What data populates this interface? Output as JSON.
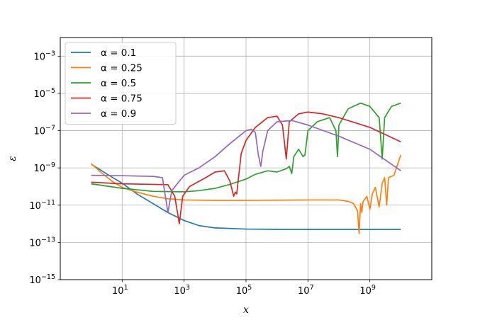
{
  "chart_data": {
    "type": "line",
    "title": "",
    "xlabel": "x",
    "ylabel": "ε",
    "xscale": "log",
    "yscale": "log",
    "xlim": [
      0.1,
      100000000000.0
    ],
    "ylim": [
      1e-15,
      0.01
    ],
    "grid": true,
    "legend_position": "top-left",
    "xticks": [
      {
        "value": 10,
        "base": "10",
        "exp": "1"
      },
      {
        "value": 1000,
        "base": "10",
        "exp": "3"
      },
      {
        "value": 100000,
        "base": "10",
        "exp": "5"
      },
      {
        "value": 10000000,
        "base": "10",
        "exp": "7"
      },
      {
        "value": 1000000000,
        "base": "10",
        "exp": "9"
      }
    ],
    "yticks": [
      {
        "value": 1e-15,
        "base": "10",
        "exp": "−15"
      },
      {
        "value": 1e-13,
        "base": "10",
        "exp": "−13"
      },
      {
        "value": 1e-11,
        "base": "10",
        "exp": "−11"
      },
      {
        "value": 1e-09,
        "base": "10",
        "exp": "−9"
      },
      {
        "value": 1e-07,
        "base": "10",
        "exp": "−7"
      },
      {
        "value": 1e-05,
        "base": "10",
        "exp": "−5"
      },
      {
        "value": 0.001,
        "base": "10",
        "exp": "−3"
      }
    ],
    "series": [
      {
        "name": "α = 0.1",
        "color": "#1f77b4",
        "points": [
          [
            1,
            1.6e-09
          ],
          [
            3,
            5e-10
          ],
          [
            10,
            1.5e-10
          ],
          [
            30,
            4e-11
          ],
          [
            100,
            1.2e-11
          ],
          [
            300,
            4e-12
          ],
          [
            1000,
            1.5e-12
          ],
          [
            3000,
            8e-13
          ],
          [
            10000,
            6e-13
          ],
          [
            100000,
            5.2e-13
          ],
          [
            1000000,
            5e-13
          ],
          [
            10000000000,
            5e-13
          ]
        ]
      },
      {
        "name": "α = 0.25",
        "color": "#ff7f0e",
        "points": [
          [
            1,
            1.7e-09
          ],
          [
            2,
            6e-10
          ],
          [
            5,
            1.8e-10
          ],
          [
            10,
            9e-11
          ],
          [
            30,
            5e-11
          ],
          [
            100,
            3e-11
          ],
          [
            300,
            2.2e-11
          ],
          [
            1000,
            1.9e-11
          ],
          [
            10000,
            1.8e-11
          ],
          [
            100000,
            1.8e-11
          ],
          [
            1000000,
            1.85e-11
          ],
          [
            10000000,
            1.9e-11
          ],
          [
            100000000,
            1.9e-11
          ],
          [
            200000000,
            1.6e-11
          ],
          [
            300000000,
            1.2e-11
          ],
          [
            400000000,
            5e-12
          ],
          [
            450000000,
            3e-13
          ],
          [
            500000000,
            1.2e-11
          ],
          [
            550000000,
            4e-12
          ],
          [
            600000000,
            1.5e-11
          ],
          [
            800000000,
            3e-11
          ],
          [
            1000000000,
            6e-12
          ],
          [
            1200000000,
            4e-11
          ],
          [
            1500000000,
            9e-11
          ],
          [
            2000000000,
            8e-12
          ],
          [
            2500000000,
            1.5e-10
          ],
          [
            3000000000,
            3e-10
          ],
          [
            3500000000,
            1e-11
          ],
          [
            4000000000,
            3e-10
          ],
          [
            6000000000,
            4e-10
          ],
          [
            10000000000,
            5e-09
          ]
        ]
      },
      {
        "name": "α = 0.5",
        "color": "#2ca02c",
        "points": [
          [
            1,
            1.4e-10
          ],
          [
            10,
            8e-11
          ],
          [
            100,
            5.5e-11
          ],
          [
            1000,
            5.2e-11
          ],
          [
            3000,
            6e-11
          ],
          [
            10000,
            8e-11
          ],
          [
            30000,
            1.3e-10
          ],
          [
            100000,
            2.5e-10
          ],
          [
            200000,
            4.5e-10
          ],
          [
            500000,
            7e-10
          ],
          [
            1000000,
            6e-10
          ],
          [
            2000000,
            9e-10
          ],
          [
            2500000,
            1.2e-09
          ],
          [
            3000000,
            5e-10
          ],
          [
            3500000,
            4e-09
          ],
          [
            5000000,
            1e-08
          ],
          [
            7000000,
            4e-09
          ],
          [
            8000000,
            5e-09
          ],
          [
            10000000,
            1e-07
          ],
          [
            20000000,
            3e-07
          ],
          [
            50000000,
            5e-07
          ],
          [
            80000000,
            1e-07
          ],
          [
            90000000,
            4e-09
          ],
          [
            100000000,
            2e-07
          ],
          [
            200000000,
            1.5e-06
          ],
          [
            500000000,
            3e-06
          ],
          [
            1000000000,
            2e-06
          ],
          [
            2000000000,
            5e-07
          ],
          [
            2500000000,
            3e-09
          ],
          [
            3000000000,
            5e-07
          ],
          [
            5000000000,
            2e-06
          ],
          [
            10000000000,
            3e-06
          ]
        ]
      },
      {
        "name": "α = 0.75",
        "color": "#d62728",
        "points": [
          [
            1,
            1.7e-10
          ],
          [
            10,
            1.4e-10
          ],
          [
            100,
            1.3e-10
          ],
          [
            300,
            1.25e-10
          ],
          [
            500,
            3e-11
          ],
          [
            700,
            1e-12
          ],
          [
            900,
            3e-11
          ],
          [
            1500,
            1e-10
          ],
          [
            5000,
            3e-10
          ],
          [
            10000,
            6e-10
          ],
          [
            20000,
            7e-10
          ],
          [
            30000,
            2e-10
          ],
          [
            40000,
            3e-11
          ],
          [
            45000,
            5e-11
          ],
          [
            50000,
            4e-11
          ],
          [
            70000,
            6e-09
          ],
          [
            100000,
            3e-08
          ],
          [
            200000,
            1.5e-07
          ],
          [
            500000,
            5e-07
          ],
          [
            1000000,
            6e-07
          ],
          [
            1500000,
            2e-07
          ],
          [
            2000000,
            3e-09
          ],
          [
            2500000,
            3e-07
          ],
          [
            5000000,
            8e-07
          ],
          [
            10000000,
            1e-06
          ],
          [
            30000000,
            8e-07
          ],
          [
            100000000,
            5e-07
          ],
          [
            1000000000,
            1.5e-07
          ],
          [
            10000000000,
            2.5e-08
          ]
        ]
      },
      {
        "name": "α = 0.9",
        "color": "#9467bd",
        "points": [
          [
            1,
            4e-10
          ],
          [
            10,
            3.8e-10
          ],
          [
            100,
            3.5e-10
          ],
          [
            200,
            3e-10
          ],
          [
            300,
            4e-12
          ],
          [
            400,
            6e-11
          ],
          [
            1000,
            4e-10
          ],
          [
            3000,
            1e-09
          ],
          [
            10000,
            4e-09
          ],
          [
            30000,
            2e-08
          ],
          [
            100000,
            1e-07
          ],
          [
            150000,
            1.2e-07
          ],
          [
            200000,
            8e-08
          ],
          [
            250000,
            5e-09
          ],
          [
            300000,
            1.2e-09
          ],
          [
            350000,
            8e-09
          ],
          [
            500000,
            1e-07
          ],
          [
            1000000,
            3e-07
          ],
          [
            3000000,
            3.5e-07
          ],
          [
            10000000,
            2e-07
          ],
          [
            100000000,
            5e-08
          ],
          [
            1000000000,
            1e-08
          ],
          [
            10000000000,
            7e-10
          ]
        ]
      }
    ]
  }
}
